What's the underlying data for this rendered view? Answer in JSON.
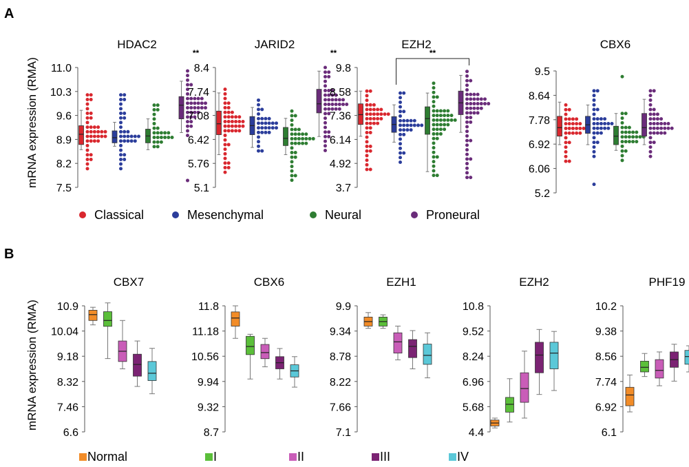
{
  "panels": [
    {
      "letter": "A",
      "ylabel": "mRNA expression (RMA)"
    },
    {
      "letter": "B",
      "ylabel": "mRNA expression (RMA)"
    }
  ],
  "legend_a": [
    {
      "label": "Classical",
      "color": "#d9272e"
    },
    {
      "label": "Mesenchymal",
      "color": "#2b3d9b"
    },
    {
      "label": "Neural",
      "color": "#2e7d32"
    },
    {
      "label": "Proneural",
      "color": "#6a2c7a"
    }
  ],
  "legend_b": [
    {
      "label": "Normal",
      "color": "#f28c28"
    },
    {
      "label": "I",
      "color": "#5bbf3a"
    },
    {
      "label": "II",
      "color": "#c95db8"
    },
    {
      "label": "III",
      "color": "#7b2373"
    },
    {
      "label": "IV",
      "color": "#5bc8d8"
    }
  ],
  "chart_data": [
    {
      "panel": "A",
      "type": "scatter",
      "title": "HDAC2",
      "yticks": [
        "11.0",
        "10.3",
        "9.6",
        "8.9",
        "8.2",
        "7.5"
      ],
      "ylim": [
        7.5,
        11.0
      ],
      "groups": [
        "Classical",
        "Mesenchymal",
        "Neural",
        "Proneural"
      ],
      "box": [
        [
          8.6,
          8.75,
          9.05,
          9.3,
          9.75
        ],
        [
          8.7,
          8.8,
          8.95,
          9.15,
          9.4
        ],
        [
          8.6,
          8.8,
          9.0,
          9.2,
          9.5
        ],
        [
          9.1,
          9.5,
          9.9,
          10.15,
          10.6
        ]
      ],
      "dot_range": [
        [
          8.0,
          10.2
        ],
        [
          8.0,
          10.2
        ],
        [
          8.6,
          9.9
        ],
        [
          8.9,
          10.9
        ]
      ],
      "outliers": [
        [],
        [],
        [],
        [
          7.7
        ]
      ],
      "significance": [
        {
          "group": 3,
          "label": "**"
        }
      ]
    },
    {
      "panel": "A",
      "type": "scatter",
      "title": "JARID2",
      "yticks": [
        "8.4",
        "7.74",
        "7.08",
        "6.42",
        "5.76",
        "5.1"
      ],
      "ylim": [
        5.1,
        8.4
      ],
      "groups": [
        "Classical",
        "Mesenchymal",
        "Neural",
        "Proneural"
      ],
      "box": [
        [
          6.0,
          6.55,
          6.85,
          7.2,
          7.7
        ],
        [
          6.2,
          6.55,
          6.8,
          7.05,
          7.3
        ],
        [
          6.0,
          6.25,
          6.45,
          6.75,
          7.0
        ],
        [
          6.5,
          7.15,
          7.4,
          7.8,
          8.3
        ]
      ],
      "dot_range": [
        [
          5.5,
          7.8
        ],
        [
          6.0,
          7.5
        ],
        [
          5.3,
          7.2
        ],
        [
          6.1,
          8.4
        ]
      ],
      "outliers": [
        [],
        [],
        [],
        []
      ],
      "significance": [
        {
          "group": 3,
          "label": "**"
        }
      ]
    },
    {
      "panel": "A",
      "type": "scatter",
      "title": "EZH2",
      "yticks": [
        "9.8",
        "8.58",
        "7.36",
        "6.14",
        "4.92",
        "3.7"
      ],
      "ylim": [
        3.7,
        9.8
      ],
      "groups": [
        "Classical",
        "Mesenchymal",
        "Neural",
        "Proneural"
      ],
      "box": [
        [
          6.3,
          6.9,
          7.4,
          7.95,
          8.6
        ],
        [
          6.0,
          6.5,
          6.9,
          7.3,
          7.9
        ],
        [
          4.5,
          6.4,
          7.2,
          7.8,
          8.5
        ],
        [
          6.5,
          7.4,
          8.0,
          8.6,
          9.4
        ]
      ],
      "dot_range": [
        [
          4.5,
          8.6
        ],
        [
          4.9,
          8.5
        ],
        [
          4.3,
          9.0
        ],
        [
          4.2,
          9.6
        ]
      ],
      "outliers": [
        [],
        [],
        [],
        []
      ],
      "bracket": {
        "from": 1,
        "to": 3,
        "label": "**"
      }
    },
    {
      "panel": "A",
      "type": "scatter",
      "title": "CBX6",
      "yticks": [
        "9.5",
        "8.64",
        "7.78",
        "6.92",
        "6.06",
        "5.2"
      ],
      "ylim": [
        5.2,
        9.5
      ],
      "groups": [
        "Classical",
        "Mesenchymal",
        "Neural",
        "Proneural"
      ],
      "box": [
        [
          6.9,
          7.2,
          7.5,
          7.9,
          8.4
        ],
        [
          6.9,
          7.3,
          7.6,
          7.9,
          8.3
        ],
        [
          6.7,
          6.9,
          7.2,
          7.55,
          8.0
        ],
        [
          6.9,
          7.2,
          7.5,
          8.0,
          8.5
        ]
      ],
      "dot_range": [
        [
          6.3,
          8.3
        ],
        [
          6.4,
          8.8
        ],
        [
          6.2,
          8.0
        ],
        [
          6.4,
          8.8
        ]
      ],
      "outliers": [
        [],
        [
          5.5
        ],
        [
          9.3
        ],
        []
      ],
      "significance": []
    },
    {
      "panel": "B",
      "type": "box",
      "title": "CBX7",
      "yticks": [
        "10.9",
        "10.04",
        "9.18",
        "8.32",
        "7.46",
        "6.6"
      ],
      "ylim": [
        6.6,
        10.9
      ],
      "groups": [
        "Normal",
        "I",
        "II",
        "III",
        "IV"
      ],
      "box": [
        [
          10.25,
          10.4,
          10.6,
          10.75,
          10.85
        ],
        [
          9.1,
          10.2,
          10.4,
          10.7,
          11.0
        ],
        [
          8.75,
          9.0,
          9.35,
          9.7,
          10.4
        ],
        [
          8.15,
          8.5,
          8.9,
          9.25,
          9.7
        ],
        [
          7.9,
          8.35,
          8.6,
          9.0,
          9.45
        ]
      ]
    },
    {
      "panel": "B",
      "type": "box",
      "title": "CBX6",
      "yticks": [
        "11.8",
        "11.18",
        "10.56",
        "9.94",
        "9.32",
        "8.7"
      ],
      "ylim": [
        8.7,
        11.8
      ],
      "groups": [
        "Normal",
        "I",
        "II",
        "III",
        "IV"
      ],
      "box": [
        [
          11.0,
          11.3,
          11.5,
          11.65,
          11.8
        ],
        [
          10.0,
          10.6,
          10.8,
          11.05,
          11.1
        ],
        [
          10.3,
          10.5,
          10.65,
          10.85,
          11.0
        ],
        [
          10.0,
          10.25,
          10.4,
          10.55,
          10.75
        ],
        [
          9.8,
          10.05,
          10.2,
          10.35,
          10.55
        ]
      ]
    },
    {
      "panel": "B",
      "type": "box",
      "title": "EZH1",
      "yticks": [
        "9.9",
        "9.34",
        "8.78",
        "8.22",
        "7.66",
        "7.1"
      ],
      "ylim": [
        7.1,
        9.9
      ],
      "groups": [
        "Normal",
        "I",
        "II",
        "III",
        "IV"
      ],
      "box": [
        [
          9.4,
          9.45,
          9.55,
          9.65,
          9.75
        ],
        [
          9.4,
          9.45,
          9.55,
          9.65,
          9.7
        ],
        [
          8.7,
          8.85,
          9.1,
          9.3,
          9.45
        ],
        [
          8.5,
          8.75,
          9.0,
          9.15,
          9.35
        ],
        [
          8.3,
          8.6,
          8.8,
          9.05,
          9.3
        ]
      ]
    },
    {
      "panel": "B",
      "type": "box",
      "title": "EZH2",
      "yticks": [
        "10.8",
        "9.52",
        "8.24",
        "6.96",
        "5.68",
        "4.4"
      ],
      "ylim": [
        4.4,
        10.8
      ],
      "groups": [
        "Normal",
        "I",
        "II",
        "III",
        "IV"
      ],
      "box": [
        [
          4.6,
          4.7,
          4.85,
          5.0,
          5.1
        ],
        [
          4.9,
          5.4,
          5.8,
          6.15,
          7.1
        ],
        [
          5.1,
          5.9,
          6.6,
          7.4,
          8.5
        ],
        [
          6.3,
          7.4,
          8.3,
          8.95,
          9.6
        ],
        [
          6.5,
          7.6,
          8.4,
          8.95,
          9.5
        ]
      ]
    },
    {
      "panel": "B",
      "type": "box",
      "title": "PHF19",
      "yticks": [
        "10.2",
        "9.38",
        "8.56",
        "7.74",
        "6.92",
        "6.1"
      ],
      "ylim": [
        6.1,
        10.2
      ],
      "groups": [
        "Normal",
        "I",
        "II",
        "III",
        "IV"
      ],
      "box": [
        [
          6.75,
          6.95,
          7.3,
          7.55,
          7.95
        ],
        [
          7.9,
          8.05,
          8.2,
          8.4,
          8.65
        ],
        [
          7.6,
          7.85,
          8.1,
          8.45,
          8.7
        ],
        [
          7.75,
          8.2,
          8.45,
          8.7,
          8.95
        ],
        [
          8.05,
          8.3,
          8.55,
          8.75,
          8.9
        ]
      ]
    }
  ]
}
